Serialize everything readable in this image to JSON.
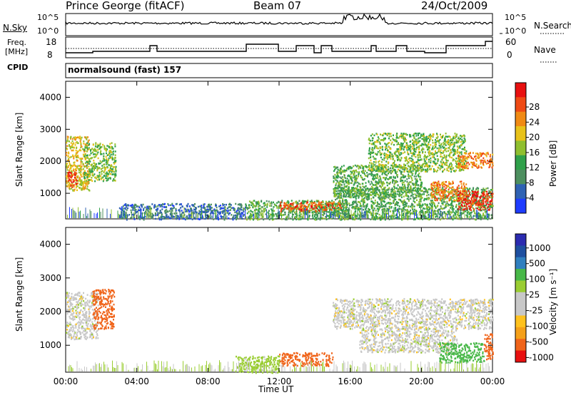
{
  "header": {
    "station": "Prince George (fitACF)",
    "beam": "Beam 07",
    "date": "24/Oct/2009"
  },
  "top_panels": {
    "nsky_label": "N.Sky",
    "nsky_ticks": [
      "10^5",
      "10^0"
    ],
    "nsearch_label": "N.Search",
    "freq_label_1": "Freq.",
    "freq_label_2": "[MHz]",
    "freq_ticks": [
      "18",
      "8"
    ],
    "nave_ticks": [
      "60",
      "0"
    ],
    "nave_label": "Nave",
    "cpid_label": "CPID",
    "cpid_value": "normalsound (fast) 157"
  },
  "colors": {
    "power": [
      "#1e3cff",
      "#2f62b3",
      "#4d8f5f",
      "#2fa04a",
      "#8fbf2f",
      "#e8c21a",
      "#f08a14",
      "#ef4a14",
      "#e81010"
    ],
    "velocity": [
      "#e81010",
      "#f0641a",
      "#f5a019",
      "#ffc21e",
      "#c8c8c8",
      "#c8c8c8",
      "#9acd32",
      "#48b848",
      "#2f7fbf",
      "#1e4fa0",
      "#2b2bb0"
    ]
  },
  "chart_data": [
    {
      "type": "heatmap",
      "name": "power",
      "ylabel": "Slant Range [km]",
      "xlabel": "",
      "x_ticks": [
        "00:00",
        "04:00",
        "08:00",
        "12:00",
        "16:00",
        "20:00",
        "00:00"
      ],
      "y_ticks": [
        1000,
        2000,
        3000,
        4000
      ],
      "ylim": [
        200,
        4500
      ],
      "colorbar_label": "Power [dB]",
      "colorbar_ticks": [
        "4",
        "8",
        "12",
        "16",
        "20",
        "24",
        "28"
      ],
      "blobs": [
        {
          "t0": 0.0,
          "t1": 1.3,
          "r0": 1100,
          "r1": 2800,
          "v": 18
        },
        {
          "t0": 1.0,
          "t1": 2.8,
          "r0": 1400,
          "r1": 2600,
          "v": 14
        },
        {
          "t0": 0.1,
          "t1": 0.6,
          "r0": 1200,
          "r1": 1700,
          "v": 26
        },
        {
          "t0": 3.0,
          "t1": 10.0,
          "r0": 200,
          "r1": 700,
          "v": 6
        },
        {
          "t0": 10.0,
          "t1": 16.0,
          "r0": 200,
          "r1": 800,
          "v": 12
        },
        {
          "t0": 12.0,
          "t1": 15.5,
          "r0": 450,
          "r1": 750,
          "v": 24
        },
        {
          "t0": 15.0,
          "t1": 24.0,
          "r0": 200,
          "r1": 1200,
          "v": 12
        },
        {
          "t0": 15.0,
          "t1": 20.0,
          "r0": 900,
          "r1": 1900,
          "v": 12
        },
        {
          "t0": 17.0,
          "t1": 22.5,
          "r0": 1700,
          "r1": 2900,
          "v": 14
        },
        {
          "t0": 20.5,
          "t1": 22.5,
          "r0": 800,
          "r1": 1400,
          "v": 22
        },
        {
          "t0": 22.0,
          "t1": 24.0,
          "r0": 500,
          "r1": 1100,
          "v": 26
        },
        {
          "t0": 22.0,
          "t1": 24.0,
          "r0": 1800,
          "r1": 2300,
          "v": 22
        }
      ]
    },
    {
      "type": "heatmap",
      "name": "velocity",
      "ylabel": "Slant Range [km]",
      "xlabel": "Time UT",
      "x_ticks": [
        "00:00",
        "04:00",
        "08:00",
        "12:00",
        "16:00",
        "20:00",
        "00:00"
      ],
      "y_ticks": [
        1000,
        2000,
        3000,
        4000
      ],
      "ylim": [
        200,
        4500
      ],
      "colorbar_label": "Velocity [m s⁻¹]",
      "colorbar_ticks": [
        "1000",
        "500",
        "100",
        "25",
        "-25",
        "-100",
        "-500",
        "-1000"
      ],
      "blobs": [
        {
          "t0": 0.0,
          "t1": 1.8,
          "r0": 1200,
          "r1": 2600,
          "v": 0
        },
        {
          "t0": 1.5,
          "t1": 2.7,
          "r0": 1500,
          "r1": 2700,
          "v": -300
        },
        {
          "t0": 9.5,
          "t1": 12.0,
          "r0": 200,
          "r1": 700,
          "v": 50
        },
        {
          "t0": 12.0,
          "t1": 15.0,
          "r0": 400,
          "r1": 800,
          "v": -150
        },
        {
          "t0": 15.0,
          "t1": 24.0,
          "r0": 1500,
          "r1": 2400,
          "v": 0
        },
        {
          "t0": 16.5,
          "t1": 22.0,
          "r0": 800,
          "r1": 1500,
          "v": 0
        },
        {
          "t0": 21.0,
          "t1": 23.5,
          "r0": 500,
          "r1": 1100,
          "v": 150
        },
        {
          "t0": 23.5,
          "t1": 24.0,
          "r0": 600,
          "r1": 1400,
          "v": -300
        }
      ]
    }
  ]
}
